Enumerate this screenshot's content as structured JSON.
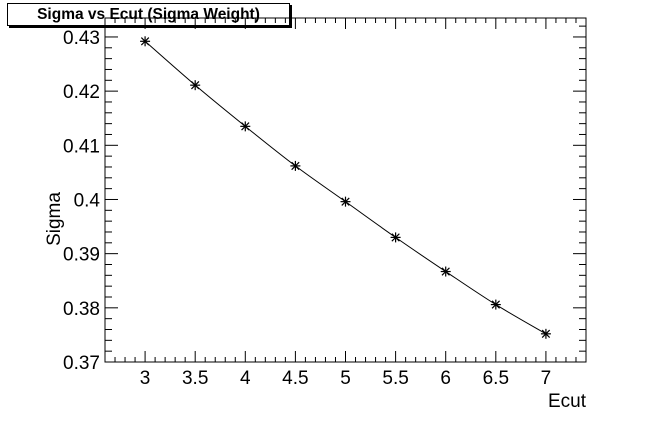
{
  "chart_data": {
    "type": "line",
    "title": "Sigma vs Ecut (Sigma Weight)",
    "xlabel": "Ecut",
    "ylabel": "Sigma",
    "xlim": [
      2.6,
      7.4
    ],
    "ylim": [
      0.37,
      0.4335
    ],
    "x_ticks": [
      3,
      3.5,
      4,
      4.5,
      5,
      5.5,
      6,
      6.5,
      7
    ],
    "x_tick_labels": [
      "3",
      "3.5",
      "4",
      "4.5",
      "5",
      "5.5",
      "6",
      "6.5",
      "7"
    ],
    "y_ticks": [
      0.37,
      0.38,
      0.39,
      0.4,
      0.41,
      0.42,
      0.43
    ],
    "y_tick_labels": [
      "0.37",
      "0.38",
      "0.39",
      "0.4",
      "0.41",
      "0.42",
      "0.43"
    ],
    "grid": false,
    "marker": "asterisk",
    "series": [
      {
        "x": [
          3,
          3.5,
          4,
          4.5,
          5,
          5.5,
          6,
          6.5,
          7
        ],
        "y": [
          0.4292,
          0.4211,
          0.4135,
          0.4062,
          0.3996,
          0.393,
          0.3867,
          0.3806,
          0.3752
        ]
      }
    ]
  }
}
